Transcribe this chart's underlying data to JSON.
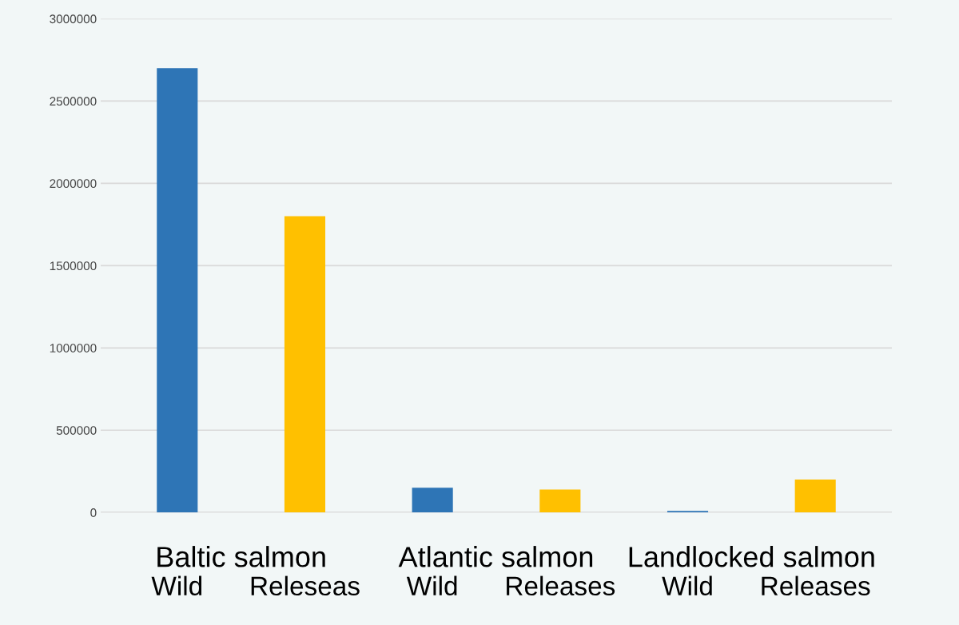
{
  "chart_data": {
    "type": "bar",
    "categories": [
      "Wild",
      "Releseas",
      "Wild",
      "Releases",
      "Wild",
      "Releases"
    ],
    "values": [
      2700000,
      1800000,
      150000,
      140000,
      10000,
      200000
    ],
    "colors": [
      "#2e75b6",
      "#ffc000",
      "#2e75b6",
      "#ffc000",
      "#2e75b6",
      "#ffc000"
    ],
    "ylim": [
      0,
      3000000
    ],
    "yticks": [
      0,
      500000,
      1000000,
      1500000,
      2000000,
      2500000,
      3000000
    ],
    "grid": "y",
    "annotations": [
      "Baltic salmon",
      "Atlantic salmon",
      "Landlocked salmon"
    ]
  }
}
